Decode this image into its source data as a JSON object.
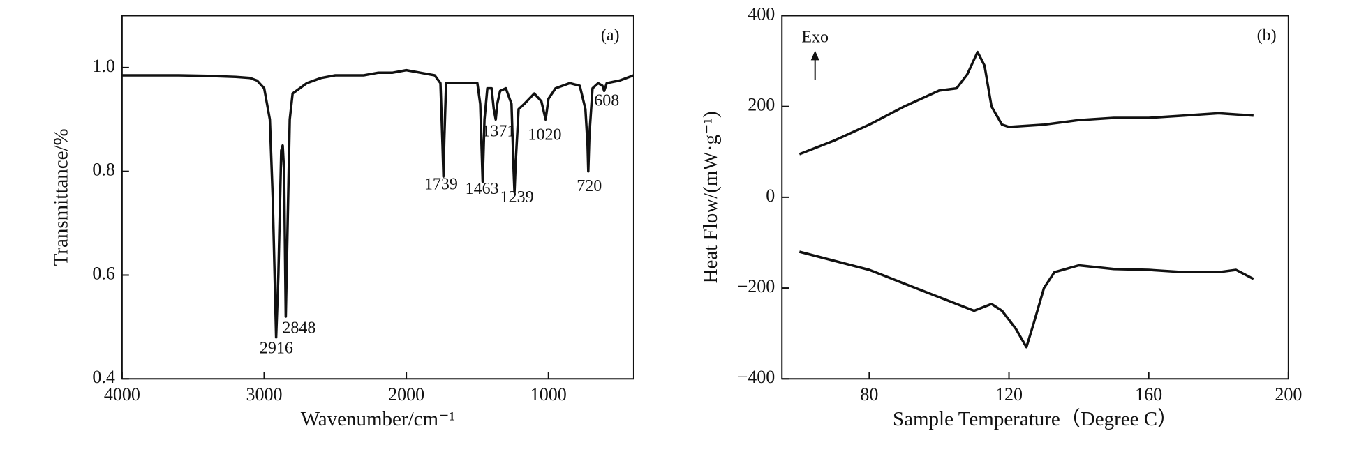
{
  "chart_data": [
    {
      "type": "line",
      "x_label": "Wavenumber/cm⁻¹",
      "y_label": "Transmittance/%",
      "annotations": [
        "(a)",
        "2916",
        "2848",
        "1739",
        "1463",
        "1371",
        "1239",
        "1020",
        "720",
        "608"
      ],
      "xlim": [
        4000,
        400
      ],
      "ylim": [
        0.4,
        1.1
      ],
      "xticks": [
        4000,
        3000,
        2000,
        1000
      ],
      "yticks": [
        0.4,
        0.6,
        0.8,
        {
          "value": 1.0,
          "label": "1.0"
        }
      ],
      "series": [
        {
          "color": "#111111",
          "x": [
            4000,
            3800,
            3600,
            3400,
            3200,
            3100,
            3050,
            3000,
            2960,
            2940,
            2916,
            2900,
            2880,
            2870,
            2860,
            2848,
            2835,
            2820,
            2800,
            2700,
            2600,
            2500,
            2400,
            2300,
            2200,
            2100,
            2000,
            1900,
            1800,
            1760,
            1745,
            1739,
            1733,
            1720,
            1600,
            1500,
            1480,
            1463,
            1450,
            1430,
            1400,
            1385,
            1371,
            1360,
            1340,
            1300,
            1260,
            1245,
            1239,
            1230,
            1210,
            1170,
            1100,
            1050,
            1020,
            1000,
            950,
            850,
            780,
            740,
            725,
            720,
            712,
            690,
            650,
            620,
            608,
            590,
            500,
            400
          ],
          "values": [
            0.985,
            0.985,
            0.985,
            0.984,
            0.982,
            0.98,
            0.975,
            0.96,
            0.9,
            0.75,
            0.48,
            0.6,
            0.84,
            0.85,
            0.8,
            0.52,
            0.7,
            0.9,
            0.95,
            0.97,
            0.98,
            0.985,
            0.985,
            0.985,
            0.99,
            0.99,
            0.995,
            0.99,
            0.985,
            0.97,
            0.85,
            0.79,
            0.86,
            0.97,
            0.97,
            0.97,
            0.93,
            0.78,
            0.9,
            0.96,
            0.96,
            0.92,
            0.9,
            0.93,
            0.955,
            0.96,
            0.93,
            0.8,
            0.76,
            0.82,
            0.92,
            0.93,
            0.95,
            0.935,
            0.9,
            0.94,
            0.96,
            0.97,
            0.965,
            0.92,
            0.85,
            0.8,
            0.87,
            0.96,
            0.97,
            0.965,
            0.955,
            0.97,
            0.975,
            0.985
          ]
        }
      ]
    },
    {
      "type": "line",
      "x_label": "Sample Temperature（Degree C）",
      "y_label": "Heat Flow/(mW·g⁻¹)",
      "annotations": [
        "(b)",
        "Exo"
      ],
      "xlim": [
        55,
        200
      ],
      "ylim": [
        -400,
        400
      ],
      "xticks": [
        80,
        120,
        160,
        200
      ],
      "yticks": [
        {
          "value": -400,
          "label": "−400"
        },
        {
          "value": -200,
          "label": "−200"
        },
        0,
        200,
        400
      ],
      "series": [
        {
          "color": "#111111",
          "x": [
            60,
            70,
            80,
            90,
            100,
            105,
            108,
            111,
            113,
            115,
            118,
            120,
            130,
            140,
            150,
            160,
            170,
            180,
            190
          ],
          "values": [
            95,
            125,
            160,
            200,
            235,
            240,
            270,
            320,
            290,
            200,
            160,
            155,
            160,
            170,
            175,
            175,
            180,
            185,
            180
          ]
        },
        {
          "color": "#111111",
          "x": [
            60,
            70,
            80,
            90,
            100,
            110,
            115,
            118,
            122,
            125,
            127,
            130,
            133,
            140,
            150,
            160,
            170,
            180,
            185,
            190
          ],
          "values": [
            -120,
            -140,
            -160,
            -190,
            -220,
            -250,
            -235,
            -250,
            -290,
            -330,
            -280,
            -200,
            -165,
            -150,
            -158,
            -160,
            -165,
            -165,
            -160,
            -180
          ]
        }
      ]
    }
  ]
}
